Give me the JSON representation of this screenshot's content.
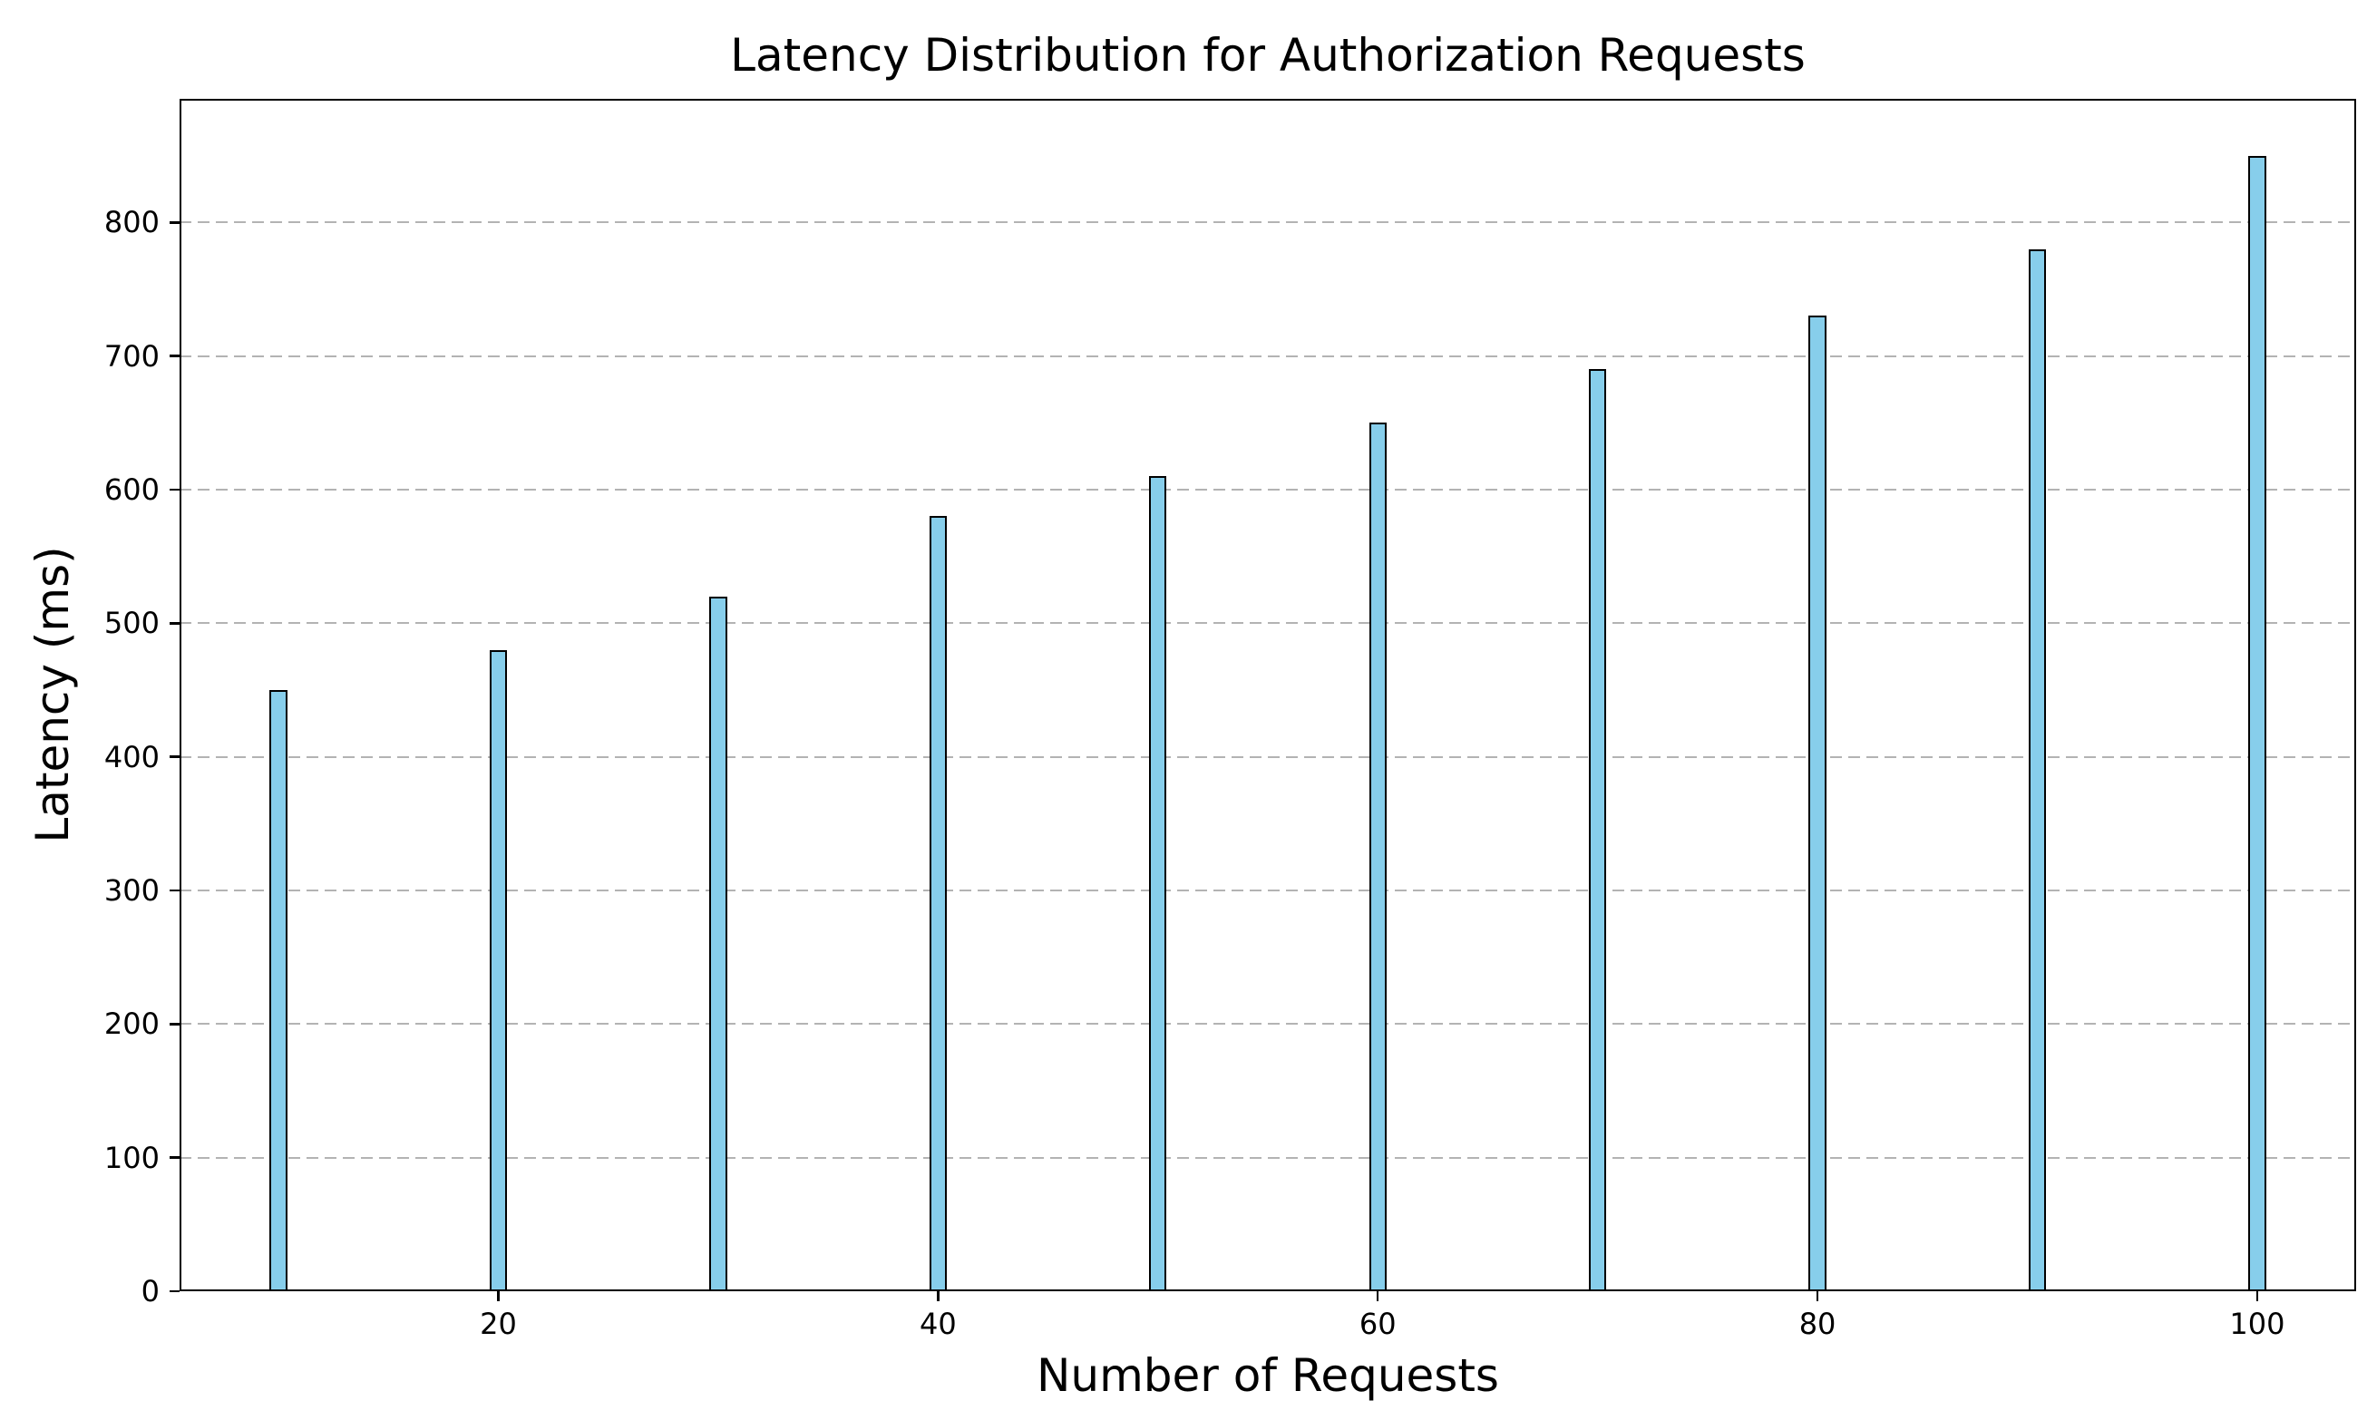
{
  "chart_data": {
    "type": "bar",
    "title": "Latency Distribution for Authorization Requests",
    "xlabel": "Number of Requests",
    "ylabel": "Latency (ms)",
    "x": [
      10,
      20,
      30,
      40,
      50,
      60,
      70,
      80,
      90,
      100
    ],
    "values": [
      450,
      480,
      520,
      580,
      610,
      650,
      690,
      730,
      780,
      850
    ],
    "bar_width_data_units": 0.8,
    "xticks": [
      20,
      40,
      60,
      80,
      100
    ],
    "yticks": [
      0,
      100,
      200,
      300,
      400,
      500,
      600,
      700,
      800
    ],
    "xlim": [
      5.5,
      104.5
    ],
    "ylim": [
      0,
      892.5
    ],
    "grid": "horizontal dashed gridlines at y ticks",
    "legend": "none",
    "colors": {
      "bar_fill": "#87CEEB",
      "bar_edge": "#000000",
      "grid": "#b3b3b3",
      "spine": "#000000",
      "text": "#000000",
      "background": "#ffffff"
    }
  }
}
